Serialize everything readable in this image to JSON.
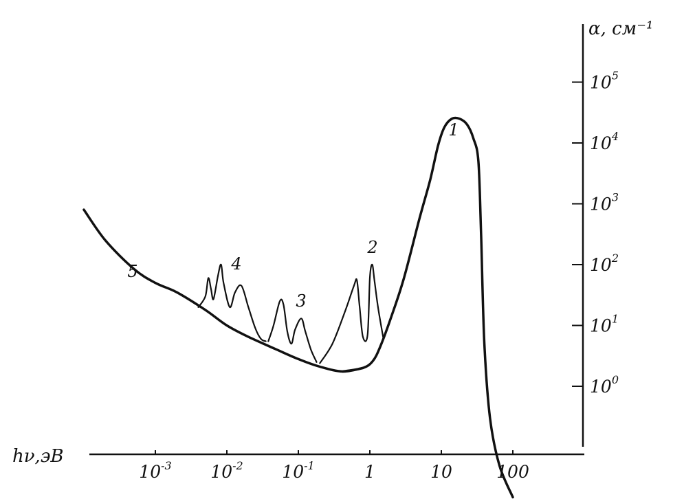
{
  "chart_data": {
    "type": "line",
    "x_scale": "log10",
    "y_scale": "log10",
    "xlabel": "hν,эВ",
    "ylabel": "α, см⁻¹",
    "x_ticks": [
      {
        "value": 0.001,
        "base": "10",
        "exp": "-3"
      },
      {
        "value": 0.01,
        "base": "10",
        "exp": "-2"
      },
      {
        "value": 0.1,
        "base": "10",
        "exp": "-1"
      },
      {
        "value": 1,
        "base": "1",
        "exp": ""
      },
      {
        "value": 10,
        "base": "10",
        "exp": ""
      },
      {
        "value": 100,
        "base": "100",
        "exp": ""
      }
    ],
    "y_ticks": [
      {
        "value": 1,
        "base": "10",
        "exp": "0"
      },
      {
        "value": 10,
        "base": "10",
        "exp": "1"
      },
      {
        "value": 100,
        "base": "10",
        "exp": "2"
      },
      {
        "value": 1000,
        "base": "10",
        "exp": "3"
      },
      {
        "value": 10000,
        "base": "10",
        "exp": "4"
      },
      {
        "value": 100000,
        "base": "10",
        "exp": "5"
      }
    ],
    "series": [
      {
        "name": "1",
        "points": [
          [
            0.42,
            1.75
          ],
          [
            0.8,
            2.0
          ],
          [
            1.1,
            2.6
          ],
          [
            1.4,
            4.5
          ],
          [
            2.0,
            14
          ],
          [
            3.0,
            60
          ],
          [
            5.0,
            600
          ],
          [
            7.0,
            2500
          ],
          [
            9.0,
            9000
          ],
          [
            11.0,
            18000
          ],
          [
            14.0,
            25000
          ],
          [
            18.0,
            25000
          ],
          [
            23.0,
            20000
          ],
          [
            28.0,
            12000
          ],
          [
            33.0,
            5000
          ],
          [
            36.0,
            300
          ],
          [
            40.0,
            5
          ],
          [
            48.0,
            0.3
          ],
          [
            65.0,
            0.05
          ],
          [
            100.0,
            0.015
          ]
        ]
      },
      {
        "name": "2",
        "points": [
          [
            0.2,
            2.4
          ],
          [
            0.3,
            5.0
          ],
          [
            0.45,
            17
          ],
          [
            0.6,
            45
          ],
          [
            0.66,
            55
          ],
          [
            0.72,
            20
          ],
          [
            0.8,
            6.5
          ],
          [
            0.93,
            7.0
          ],
          [
            1.0,
            60
          ],
          [
            1.08,
            100
          ],
          [
            1.16,
            55
          ],
          [
            1.3,
            20
          ],
          [
            1.55,
            6.0
          ]
        ]
      },
      {
        "name": "3",
        "points": [
          [
            0.038,
            5.5
          ],
          [
            0.045,
            10
          ],
          [
            0.055,
            25
          ],
          [
            0.062,
            22
          ],
          [
            0.07,
            8.0
          ],
          [
            0.08,
            5.0
          ],
          [
            0.09,
            8.5
          ],
          [
            0.11,
            13
          ],
          [
            0.125,
            8.0
          ],
          [
            0.15,
            4.0
          ],
          [
            0.18,
            2.5
          ]
        ]
      },
      {
        "name": "4",
        "points": [
          [
            0.004,
            20
          ],
          [
            0.005,
            30
          ],
          [
            0.0055,
            60
          ],
          [
            0.006,
            40
          ],
          [
            0.0065,
            27
          ],
          [
            0.0075,
            65
          ],
          [
            0.0083,
            100
          ],
          [
            0.009,
            50
          ],
          [
            0.011,
            20
          ],
          [
            0.013,
            35
          ],
          [
            0.016,
            45
          ],
          [
            0.02,
            20
          ],
          [
            0.025,
            9.0
          ],
          [
            0.03,
            6.0
          ],
          [
            0.035,
            5.5
          ]
        ]
      },
      {
        "name": "5",
        "points": [
          [
            0.0001,
            800
          ],
          [
            0.0002,
            250
          ],
          [
            0.0005,
            85
          ],
          [
            0.001,
            50
          ],
          [
            0.002,
            35
          ],
          [
            0.005,
            18
          ],
          [
            0.01,
            10
          ],
          [
            0.02,
            6.5
          ],
          [
            0.05,
            4.0
          ],
          [
            0.1,
            2.8
          ],
          [
            0.2,
            2.1
          ],
          [
            0.42,
            1.75
          ],
          [
            0.8,
            2.0
          ]
        ]
      }
    ]
  }
}
